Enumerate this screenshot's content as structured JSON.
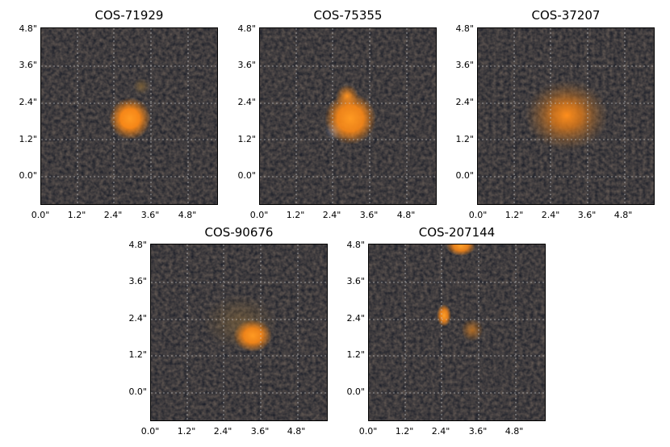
{
  "panels": [
    {
      "title": "COS-71929"
    },
    {
      "title": "COS-75355"
    },
    {
      "title": "COS-37207"
    },
    {
      "title": "COS-90676"
    },
    {
      "title": "COS-207144"
    }
  ],
  "axes": {
    "y_ticks": [
      "4.8\"",
      "3.6\"",
      "2.4\"",
      "1.2\"",
      "0.0\""
    ],
    "x_ticks": [
      "0.0\"",
      "1.2\"",
      "2.4\"",
      "3.6\"",
      "4.8\""
    ]
  },
  "colors": {
    "background_noise": "#141925",
    "source": "#ff8c1a",
    "grid": "#c8c8c8"
  }
}
